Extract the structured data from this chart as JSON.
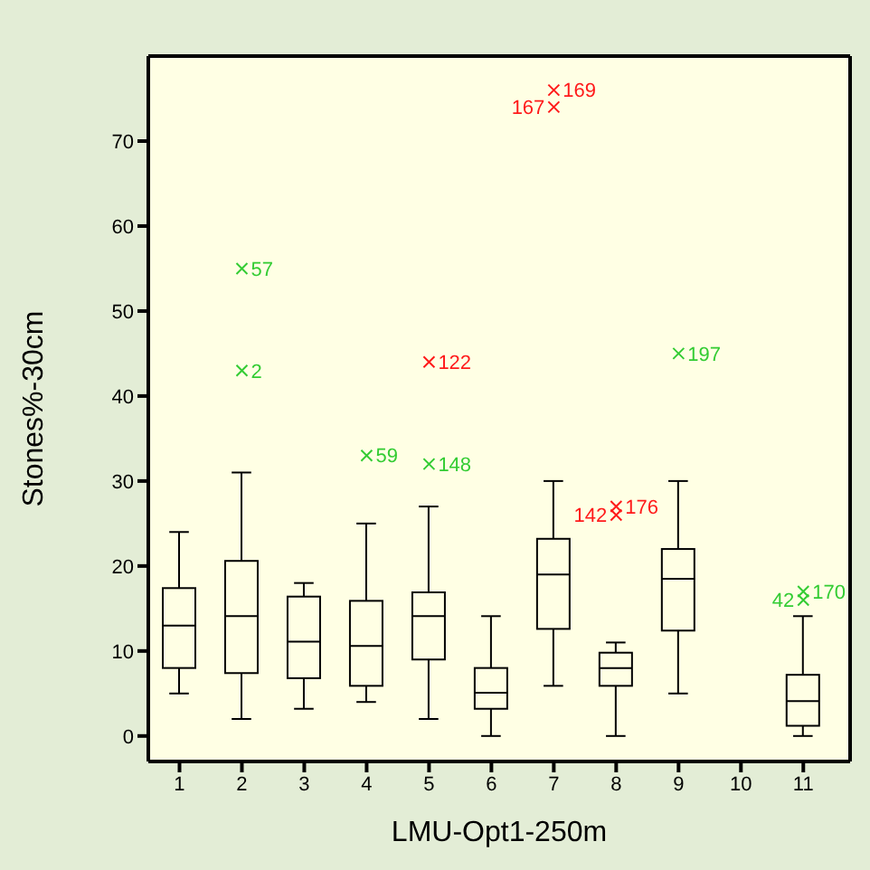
{
  "chart_data": {
    "type": "box",
    "xlabel": "LMU-Opt1-250m",
    "ylabel": "Stones%-30cm",
    "categories": [
      "1",
      "2",
      "3",
      "4",
      "5",
      "6",
      "7",
      "8",
      "9",
      "10",
      "11"
    ],
    "ylim": [
      -3,
      80
    ],
    "yticks": [
      0,
      10,
      20,
      30,
      40,
      50,
      60,
      70
    ],
    "grid": false,
    "legend": false,
    "marker": "cross",
    "boxes": [
      {
        "low": 5,
        "q1": 8,
        "median": 13,
        "q3": 17.4,
        "high": 24
      },
      {
        "low": 2,
        "q1": 7.4,
        "median": 14.1,
        "q3": 20.6,
        "high": 31
      },
      {
        "low": 3.2,
        "q1": 6.8,
        "median": 11.1,
        "q3": 16.4,
        "high": 18
      },
      {
        "low": 4,
        "q1": 5.9,
        "median": 10.6,
        "q3": 15.9,
        "high": 25
      },
      {
        "low": 2,
        "q1": 9,
        "median": 14.1,
        "q3": 16.9,
        "high": 27
      },
      {
        "low": 0,
        "q1": 3.2,
        "median": 5.1,
        "q3": 8,
        "high": 14.1
      },
      {
        "low": 5.9,
        "q1": 12.6,
        "median": 19,
        "q3": 23.2,
        "high": 30
      },
      {
        "low": 0,
        "q1": 5.9,
        "median": 8,
        "q3": 9.8,
        "high": 11
      },
      {
        "low": 5,
        "q1": 12.4,
        "median": 18.5,
        "q3": 22,
        "high": 30
      },
      null,
      {
        "low": 0,
        "q1": 1.2,
        "median": 4.1,
        "q3": 7.2,
        "high": 14.1
      }
    ],
    "series": [
      {
        "type": "scatter",
        "color": "#33cc33",
        "x": [
          "2",
          "2",
          "4",
          "5",
          "9",
          "11",
          "11"
        ],
        "values": [
          55,
          43,
          33,
          32,
          45,
          17,
          16
        ]
      },
      {
        "type": "scatter",
        "color": "#ff1a1a",
        "x": [
          "5",
          "7",
          "7",
          "8",
          "8"
        ],
        "values": [
          44,
          76,
          74,
          27,
          26
        ]
      }
    ],
    "annotations": [
      {
        "text": "57",
        "x": "2",
        "y": 55
      },
      {
        "text": "2",
        "x": "2",
        "y": 43
      },
      {
        "text": "59",
        "x": "4",
        "y": 33
      },
      {
        "text": "148",
        "x": "5",
        "y": 32
      },
      {
        "text": "197",
        "x": "9",
        "y": 45
      },
      {
        "text": "170",
        "x": "11",
        "y": 17
      },
      {
        "text": "42",
        "x": "11",
        "y": 16
      },
      {
        "text": "122",
        "x": "5",
        "y": 44
      },
      {
        "text": "169",
        "x": "7",
        "y": 76
      },
      {
        "text": "167",
        "x": "7",
        "y": 74
      },
      {
        "text": "176",
        "x": "8",
        "y": 27
      },
      {
        "text": "142",
        "x": "8",
        "y": 26
      }
    ]
  }
}
